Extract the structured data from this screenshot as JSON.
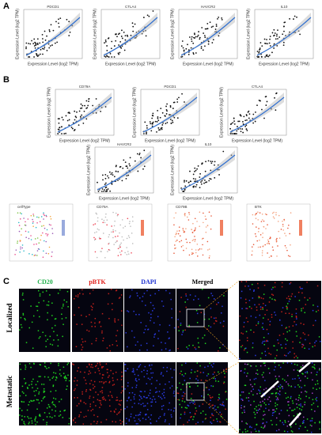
{
  "panel_a": {
    "label": "A",
    "x_label": "Expression Level (log2 TPM)",
    "y_label": "Expression Level (log2 TPM)",
    "plots": [
      {
        "gene": "PDCD1"
      },
      {
        "gene": "CTLA4"
      },
      {
        "gene": "HAVCR2"
      },
      {
        "gene": "IL10"
      }
    ]
  },
  "panel_b": {
    "label": "B",
    "x_label": "Expression Level (log2 TPM)",
    "y_label": "Expression Level (log2 TPM)",
    "plots": [
      {
        "gene": "CD79A"
      },
      {
        "gene": "PDCD1"
      },
      {
        "gene": "CTLA4"
      },
      {
        "gene": "HAVCR2"
      },
      {
        "gene": "IL10"
      }
    ]
  },
  "tsne": {
    "plots": [
      {
        "title": "cellType"
      },
      {
        "title": "CD79A"
      },
      {
        "title": "CD79B"
      },
      {
        "title": "BTK"
      }
    ]
  },
  "panel_c": {
    "label": "C",
    "columns": [
      "CD20",
      "pBTK",
      "DAPI",
      "Merged"
    ],
    "rows": [
      "Localized",
      "Metastatic"
    ]
  }
}
